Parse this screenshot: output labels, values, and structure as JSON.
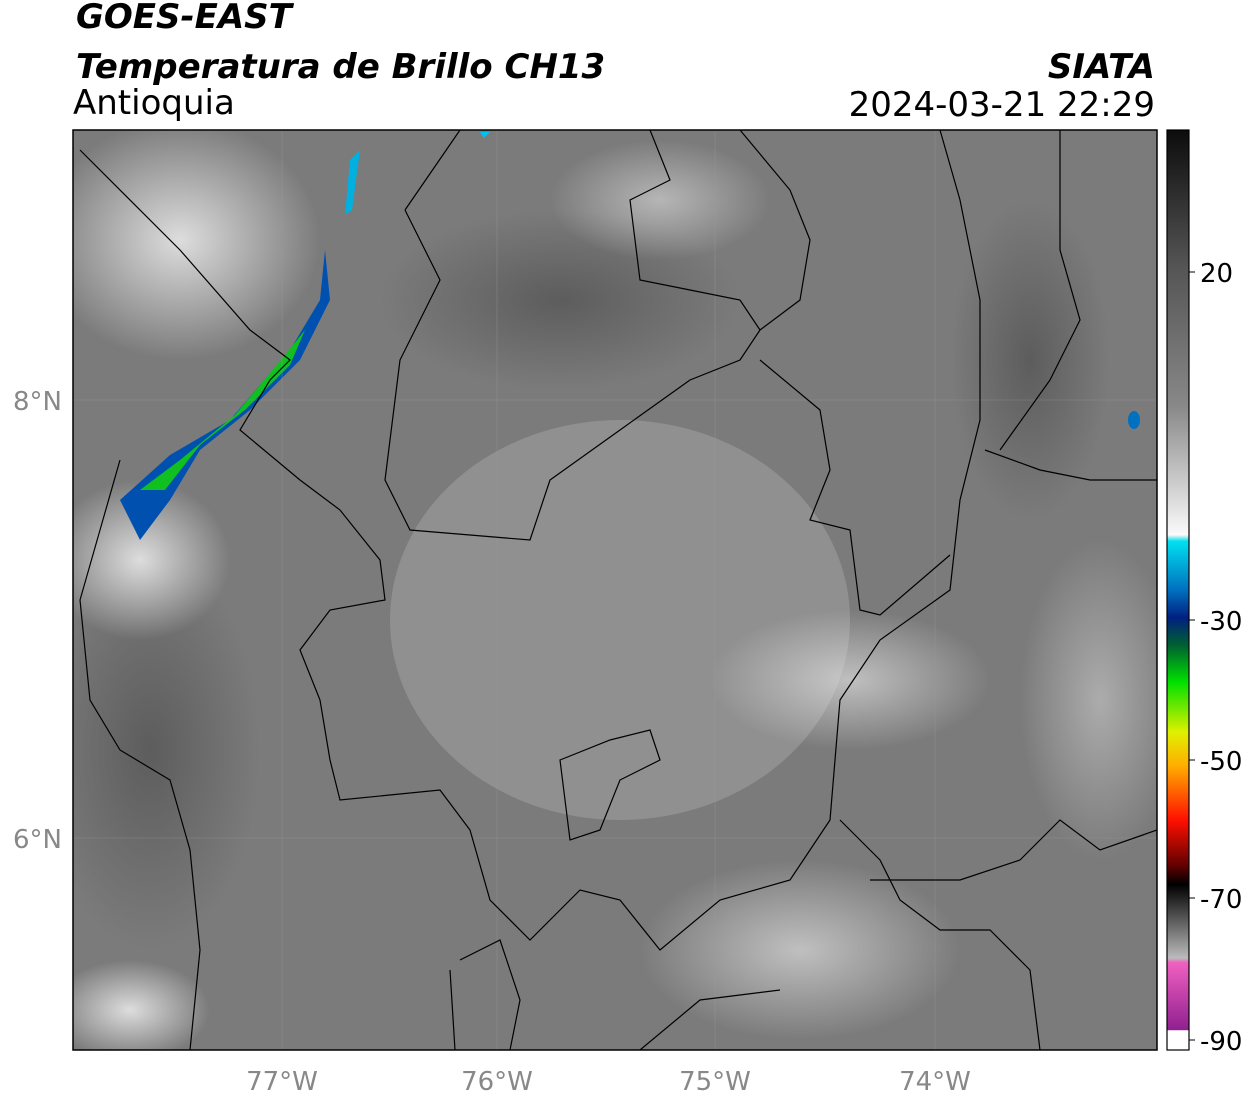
{
  "header": {
    "title": "GOES-EAST",
    "subtitle": "Temperatura de Brillo CH13",
    "region": "Antioquia",
    "source": "SIATA",
    "datetime": "2024-03-21 22:29"
  },
  "map": {
    "lat_labels": [
      "8°N",
      "6°N"
    ],
    "lon_labels": [
      "77°W",
      "76°W",
      "75°W",
      "74°W"
    ]
  },
  "colorbar": {
    "labels": [
      "20",
      "-30",
      "-50",
      "-70",
      "-90"
    ]
  }
}
